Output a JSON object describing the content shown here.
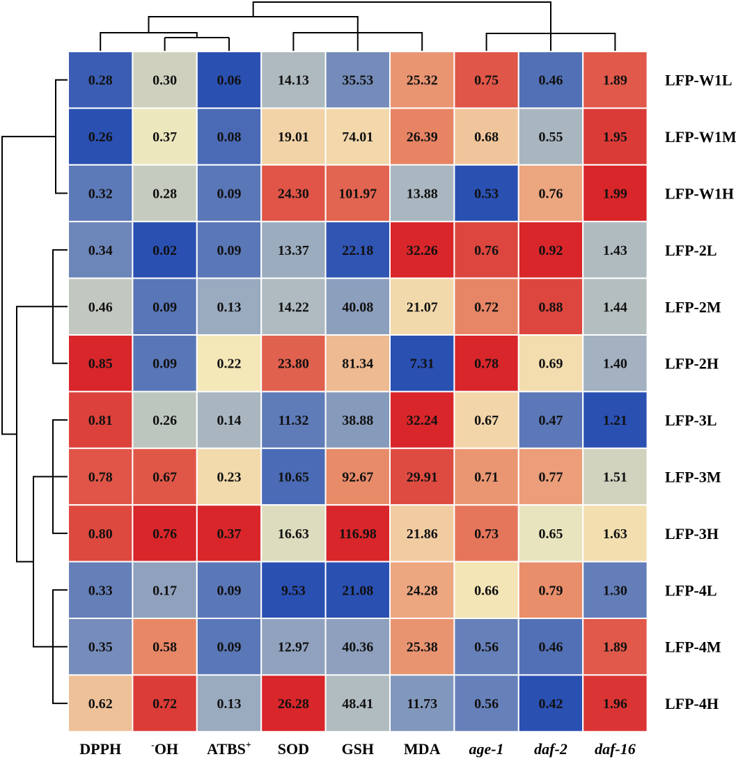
{
  "chart_data": {
    "type": "heatmap",
    "title": "",
    "rows": [
      "LFP-W1L",
      "LFP-W1M",
      "LFP-W1H",
      "LFP-2L",
      "LFP-2M",
      "LFP-2H",
      "LFP-3L",
      "LFP-3M",
      "LFP-3H",
      "LFP-4L",
      "LFP-4M",
      "LFP-4H"
    ],
    "columns": [
      {
        "label": "DPPH",
        "italic": false
      },
      {
        "label": "OH",
        "prefix_sup": "-",
        "italic": false
      },
      {
        "label": "ATBS",
        "suffix_sup": "+",
        "italic": false
      },
      {
        "label": "SOD",
        "italic": false
      },
      {
        "label": "GSH",
        "italic": false
      },
      {
        "label": "MDA",
        "italic": false
      },
      {
        "label": "age-1",
        "italic": true
      },
      {
        "label": "daf-2",
        "italic": true
      },
      {
        "label": "daf-16",
        "italic": true
      }
    ],
    "values": [
      [
        "0.28",
        "0.30",
        "0.06",
        "14.13",
        "35.53",
        "25.32",
        "0.75",
        "0.46",
        "1.89"
      ],
      [
        "0.26",
        "0.37",
        "0.08",
        "19.01",
        "74.01",
        "26.39",
        "0.68",
        "0.55",
        "1.95"
      ],
      [
        "0.32",
        "0.28",
        "0.09",
        "24.30",
        "101.97",
        "13.88",
        "0.53",
        "0.76",
        "1.99"
      ],
      [
        "0.34",
        "0.02",
        "0.09",
        "13.37",
        "22.18",
        "32.26",
        "0.76",
        "0.92",
        "1.43"
      ],
      [
        "0.46",
        "0.09",
        "0.13",
        "14.22",
        "40.08",
        "21.07",
        "0.72",
        "0.88",
        "1.44"
      ],
      [
        "0.85",
        "0.09",
        "0.22",
        "23.80",
        "81.34",
        "7.31",
        "0.78",
        "0.69",
        "1.40"
      ],
      [
        "0.81",
        "0.26",
        "0.14",
        "11.32",
        "38.88",
        "32.24",
        "0.67",
        "0.47",
        "1.21"
      ],
      [
        "0.78",
        "0.67",
        "0.23",
        "10.65",
        "92.67",
        "29.91",
        "0.71",
        "0.77",
        "1.51"
      ],
      [
        "0.80",
        "0.76",
        "0.37",
        "16.63",
        "116.98",
        "21.86",
        "0.73",
        "0.65",
        "1.63"
      ],
      [
        "0.33",
        "0.17",
        "0.09",
        "9.53",
        "21.08",
        "24.28",
        "0.66",
        "0.79",
        "1.30"
      ],
      [
        "0.35",
        "0.58",
        "0.09",
        "12.97",
        "40.36",
        "25.38",
        "0.56",
        "0.46",
        "1.89"
      ],
      [
        "0.62",
        "0.72",
        "0.13",
        "26.28",
        "48.41",
        "11.73",
        "0.56",
        "0.42",
        "1.96"
      ]
    ],
    "color_scale": "column-normalized",
    "colors": {
      "low": "#2a50b2",
      "mid_low": "#a6b4c0",
      "mid": "#f5edbd",
      "mid_high": "#e88a68",
      "high": "#d8262a",
      "grid": "#ffffff"
    },
    "column_dendrogram_order": [
      "DPPH",
      "OH",
      "ATBS",
      "SOD",
      "GSH",
      "MDA",
      "age-1",
      "daf-2",
      "daf-16"
    ],
    "row_dendrogram_order": [
      "LFP-W1L",
      "LFP-W1M",
      "LFP-W1H",
      "LFP-2L",
      "LFP-2M",
      "LFP-2H",
      "LFP-3L",
      "LFP-3M",
      "LFP-3H",
      "LFP-4L",
      "LFP-4M",
      "LFP-4H"
    ],
    "grid": true,
    "legend": "none"
  }
}
